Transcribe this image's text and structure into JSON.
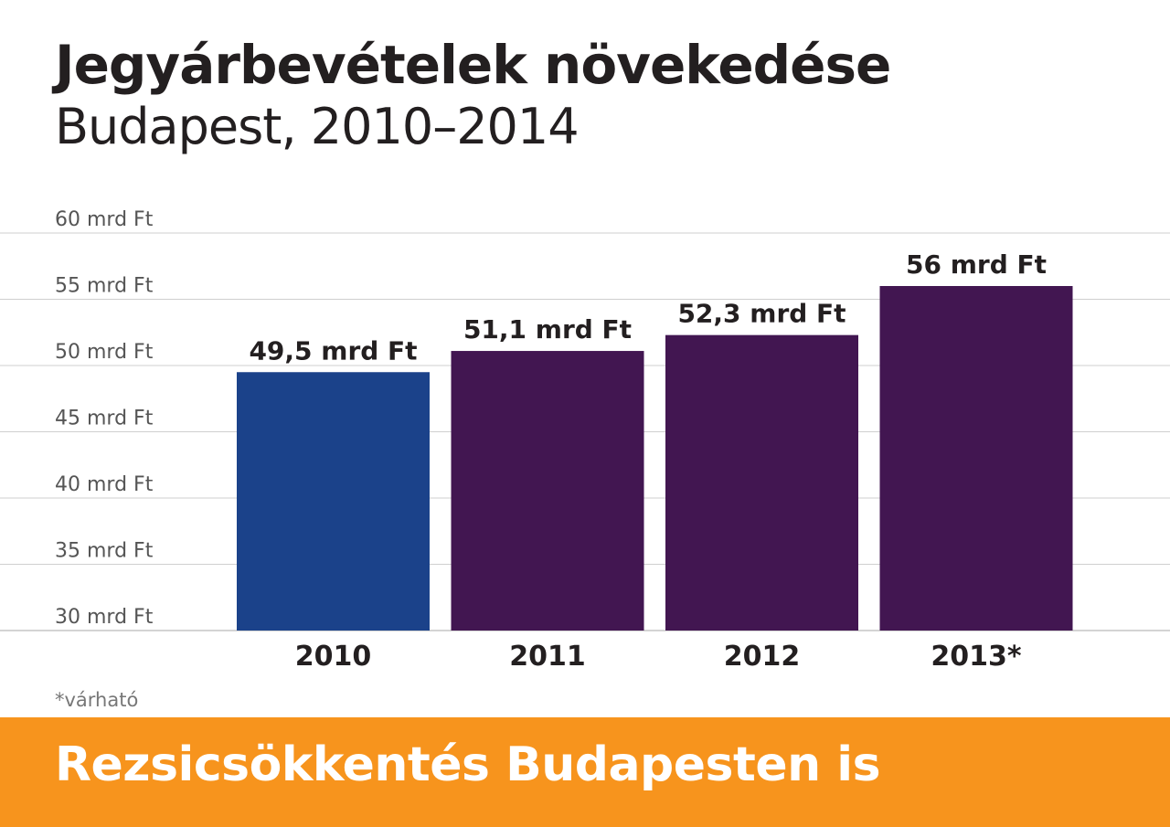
{
  "title": "Jegyárbevételek növekedése",
  "subtitle": "Budapest, 2010–2014",
  "footnote": "*várható",
  "banner": {
    "text": "Rezsicsökkentés Budapesten is",
    "color": "#f7941d"
  },
  "chart_data": {
    "type": "bar",
    "categories": [
      "2010",
      "2011",
      "2012",
      "2013*"
    ],
    "values": [
      49.5,
      51.1,
      52.3,
      56
    ],
    "data_labels": [
      "49,5 mrd Ft",
      "51,1 mrd Ft",
      "52,3 mrd Ft",
      "56 mrd Ft"
    ],
    "bar_colors": [
      "#1b428a",
      "#421651",
      "#421651",
      "#421651"
    ],
    "ylim": [
      30,
      60
    ],
    "yticks": [
      30,
      35,
      40,
      45,
      50,
      55,
      60
    ],
    "ytick_labels": [
      "30 mrd Ft",
      "35 mrd Ft",
      "40 mrd Ft",
      "45 mrd Ft",
      "50 mrd Ft",
      "55 mrd Ft",
      "60 mrd Ft"
    ],
    "grid": true
  }
}
